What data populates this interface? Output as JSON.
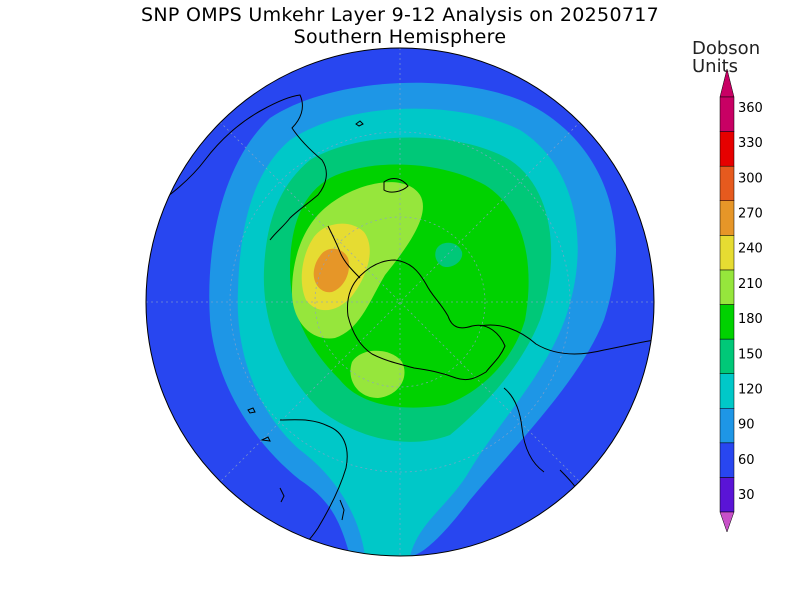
{
  "title": {
    "line1": "SNP OMPS Umkehr Layer 9-12 Analysis on 20250717",
    "line2": "Southern Hemisphere"
  },
  "colorbar": {
    "units_line1": "Dobson",
    "units_line2": "Units",
    "ticks": [
      "30",
      "60",
      "90",
      "120",
      "150",
      "180",
      "210",
      "240",
      "270",
      "300",
      "330",
      "360"
    ],
    "colors": [
      "#7a00cc",
      "#5a14d6",
      "#2846f0",
      "#1e96e6",
      "#00c8c8",
      "#00c878",
      "#00d200",
      "#96e63c",
      "#e6dc32",
      "#e69628",
      "#e65a1e",
      "#e60000",
      "#c80064"
    ],
    "under_color": "#c850c8",
    "over_color": "#c80064"
  },
  "map": {
    "projection": "south-polar-stereographic",
    "background_color": "#2846f0",
    "fill_levels_du": [
      90,
      120,
      150,
      180,
      210,
      240,
      270
    ]
  }
}
